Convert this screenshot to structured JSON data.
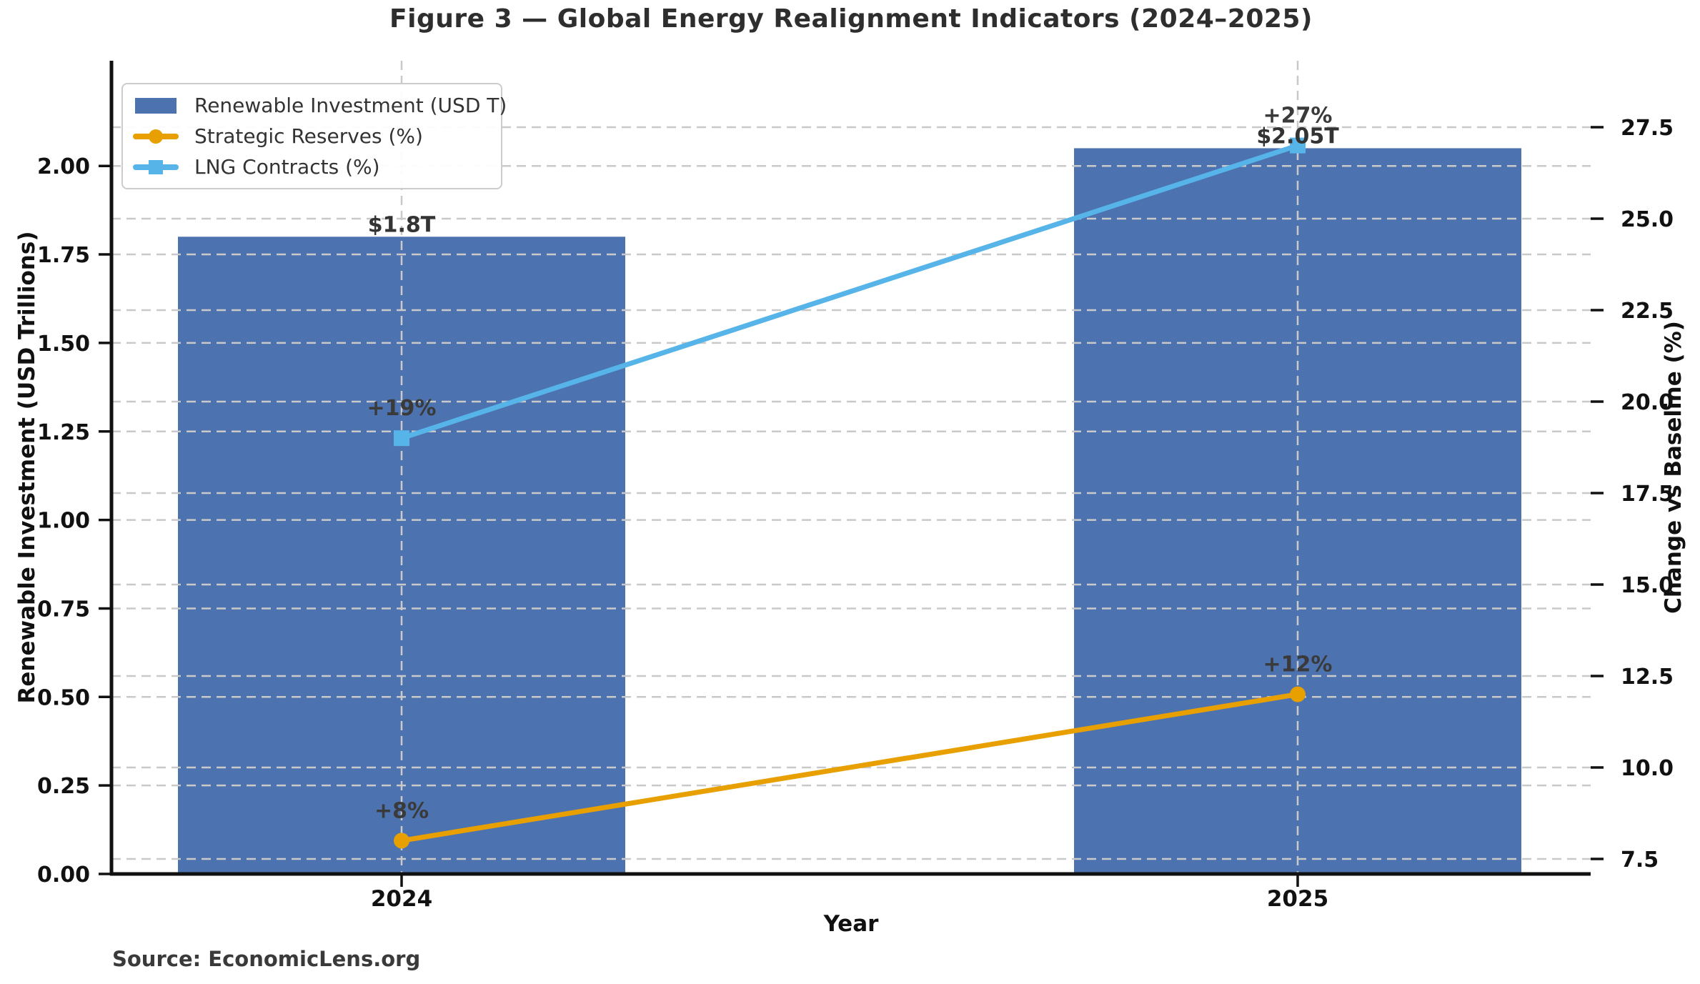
{
  "figure": {
    "title": "Figure 3 — Global Energy Realignment Indicators (2024–2025)",
    "source_note": "Source: EconomicLens.org"
  },
  "chart_data": {
    "type": "bar",
    "subtype": "combo-bar-line-dual-axis",
    "categories": [
      "2024",
      "2025"
    ],
    "xlabel": "Year",
    "axes": {
      "left": {
        "label": "Renewable Investment (USD Trillions)",
        "ticks": [
          0,
          0.25,
          0.5,
          0.75,
          1.0,
          1.25,
          1.5,
          1.75,
          2.0
        ],
        "tick_labels": [
          "0.00",
          "0.25",
          "0.50",
          "0.75",
          "1.00",
          "1.25",
          "1.50",
          "1.75",
          "2.00"
        ],
        "range": [
          0,
          2.3
        ]
      },
      "right": {
        "label": "Change vs Baseline (%)",
        "ticks": [
          7.5,
          10.0,
          12.5,
          15.0,
          17.5,
          20.0,
          22.5,
          25.0,
          27.5
        ],
        "tick_labels": [
          "7.5",
          "10.0",
          "12.5",
          "15.0",
          "17.5",
          "20.0",
          "22.5",
          "25.0",
          "27.5"
        ],
        "range": [
          7.0,
          29.3
        ]
      }
    },
    "series": [
      {
        "name": "Renewable Investment (USD T)",
        "type": "bar",
        "axis": "left",
        "color": "#4C72B0",
        "values": [
          1.8,
          2.05
        ],
        "labels": [
          "$1.8T",
          "$2.05T"
        ]
      },
      {
        "name": "Strategic Reserves (%)",
        "type": "line",
        "axis": "right",
        "marker": "circle",
        "color": "#E8A000",
        "values": [
          8,
          12
        ],
        "labels": [
          "+8%",
          "+12%"
        ]
      },
      {
        "name": "LNG Contracts (%)",
        "type": "line",
        "axis": "right",
        "marker": "square",
        "color": "#56B4E9",
        "values": [
          19,
          27
        ],
        "labels": [
          "+19%",
          "+27%"
        ]
      }
    ],
    "legend_position": "upper-left",
    "grid": {
      "style": "dashed",
      "color": "#c9c9c9",
      "sources": [
        "left-ticks",
        "right-ticks",
        "category-centers"
      ]
    }
  }
}
